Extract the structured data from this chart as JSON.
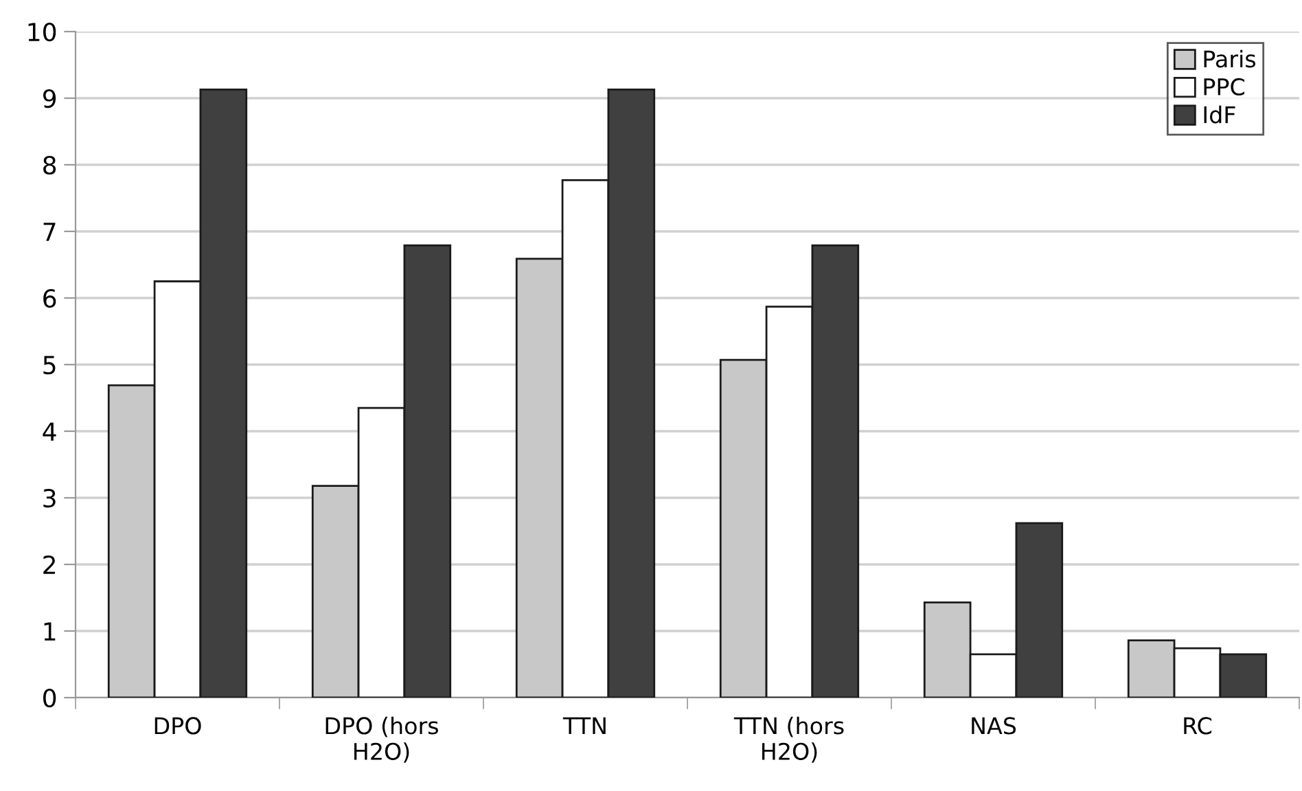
{
  "chart_data": {
    "type": "bar",
    "categories": [
      "DPO",
      "DPO (hors\nH2O)",
      "TTN",
      "TTN (hors\nH2O)",
      "NAS",
      "RC"
    ],
    "series": [
      {
        "name": "Paris",
        "color": "#c8c8c8",
        "values": [
          4.69,
          3.18,
          6.59,
          5.07,
          1.43,
          0.86
        ]
      },
      {
        "name": "PPC",
        "color": "#ffffff",
        "values": [
          6.25,
          4.35,
          7.77,
          5.87,
          0.65,
          0.74
        ]
      },
      {
        "name": "IdF",
        "color": "#404040",
        "values": [
          9.13,
          6.79,
          9.13,
          6.79,
          2.62,
          0.65
        ]
      }
    ],
    "ylim": [
      0,
      10
    ],
    "yticks": [
      0,
      1,
      2,
      3,
      4,
      5,
      6,
      7,
      8,
      9,
      10
    ],
    "grid": "y",
    "legend": "top right"
  }
}
